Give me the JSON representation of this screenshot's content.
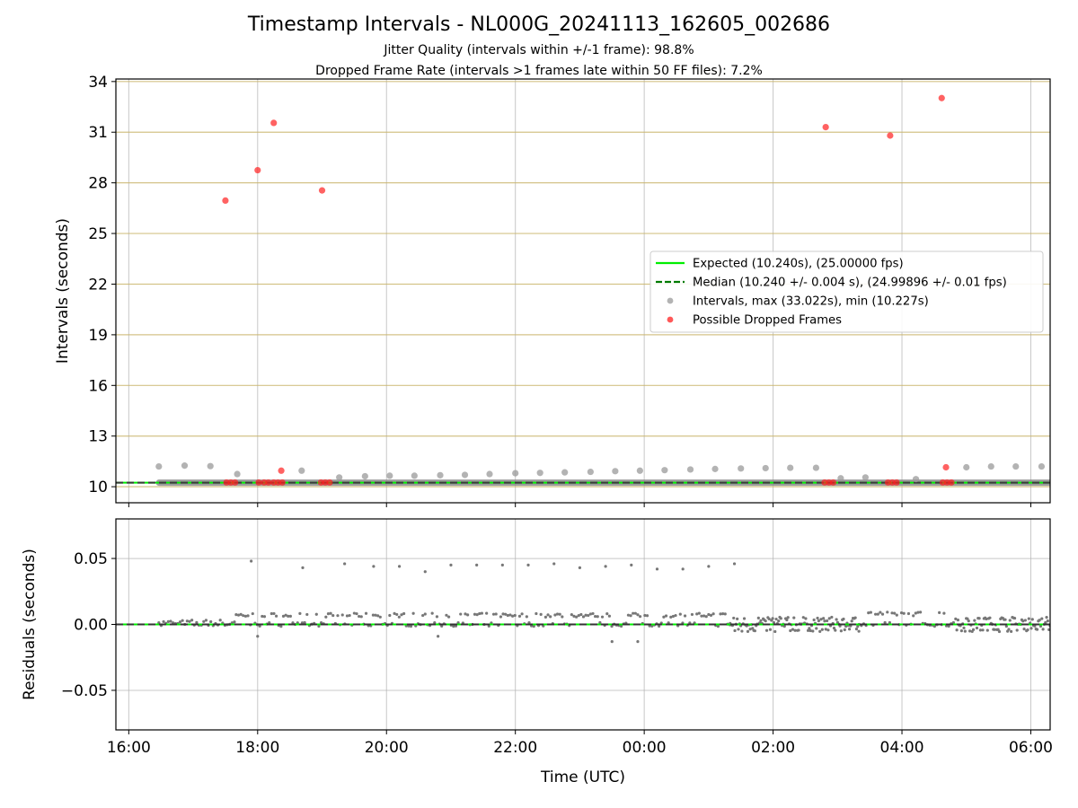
{
  "chart_data": [
    {
      "type": "scatter",
      "title": "Timestamp Intervals - NL000G_20241113_162605_002686",
      "subtitle_lines": [
        "Jitter Quality (intervals within +/-1 frame): 98.8%",
        "Dropped Frame Rate (intervals >1 frames late within 50 FF files): 7.2%"
      ],
      "xlabel": "",
      "ylabel": "Intervals (seconds)",
      "xlim": [
        "2024-11-13 15:48",
        "2024-11-14 06:18"
      ],
      "ylim": [
        9.05,
        34.15
      ],
      "yticks": [
        "10",
        "13",
        "16",
        "19",
        "22",
        "25",
        "28",
        "31",
        "34"
      ],
      "grid": true,
      "legend_position": "center-right",
      "series": [
        {
          "name": "Expected (10.240s), (25.00000 fps)",
          "kind": "line",
          "color": "#00ee00",
          "y": 10.24
        },
        {
          "name": "Median (10.240 +/- 0.004 s), (24.99896 +/- 0.01 fps)",
          "kind": "dashed-line",
          "color": "#007a00",
          "y": 10.24
        },
        {
          "name": "Intervals, max (33.022s), min (10.227s)",
          "kind": "points",
          "color": "#888888",
          "points": [
            [
              "16:28",
              11.2
            ],
            [
              "16:52",
              11.25
            ],
            [
              "17:16",
              11.22
            ],
            [
              "17:41",
              10.75
            ],
            [
              "18:41",
              10.95
            ],
            [
              "19:16",
              10.55
            ],
            [
              "19:40",
              10.62
            ],
            [
              "20:03",
              10.65
            ],
            [
              "20:26",
              10.65
            ],
            [
              "20:50",
              10.68
            ],
            [
              "21:13",
              10.7
            ],
            [
              "21:36",
              10.75
            ],
            [
              "22:00",
              10.8
            ],
            [
              "22:23",
              10.82
            ],
            [
              "22:46",
              10.85
            ],
            [
              "23:10",
              10.88
            ],
            [
              "23:33",
              10.92
            ],
            [
              "23:56",
              10.95
            ],
            [
              "00:19",
              10.98
            ],
            [
              "00:43",
              11.02
            ],
            [
              "01:06",
              11.05
            ],
            [
              "01:30",
              11.08
            ],
            [
              "01:53",
              11.1
            ],
            [
              "02:16",
              11.12
            ],
            [
              "02:40",
              11.12
            ],
            [
              "03:03",
              10.5
            ],
            [
              "03:26",
              10.55
            ],
            [
              "04:13",
              10.45
            ],
            [
              "05:00",
              11.15
            ],
            [
              "05:23",
              11.2
            ],
            [
              "05:46",
              11.2
            ],
            [
              "06:10",
              11.2
            ]
          ],
          "dense_baseline": {
            "from": "16:28",
            "to": "06:18",
            "y": 10.24
          }
        },
        {
          "name": "Possible Dropped Frames",
          "kind": "points",
          "color": "#ff0000",
          "points": [
            [
              "17:30",
              26.95
            ],
            [
              "18:00",
              28.75
            ],
            [
              "18:15",
              31.55
            ],
            [
              "18:22",
              10.95
            ],
            [
              "19:00",
              27.55
            ],
            [
              "02:49",
              31.3
            ],
            [
              "03:49",
              30.8
            ],
            [
              "04:37",
              33.02
            ],
            [
              "04:41",
              11.15
            ],
            [
              "17:31",
              10.25
            ],
            [
              "17:35",
              10.25
            ],
            [
              "17:39",
              10.25
            ],
            [
              "18:01",
              10.25
            ],
            [
              "18:06",
              10.25
            ],
            [
              "18:10",
              10.25
            ],
            [
              "18:15",
              10.25
            ],
            [
              "18:19",
              10.25
            ],
            [
              "18:23",
              10.25
            ],
            [
              "18:59",
              10.25
            ],
            [
              "19:03",
              10.25
            ],
            [
              "19:07",
              10.25
            ],
            [
              "02:48",
              10.25
            ],
            [
              "02:52",
              10.25
            ],
            [
              "02:56",
              10.25
            ],
            [
              "03:47",
              10.25
            ],
            [
              "03:51",
              10.25
            ],
            [
              "03:55",
              10.25
            ],
            [
              "04:38",
              10.25
            ],
            [
              "04:42",
              10.25
            ],
            [
              "04:46",
              10.25
            ]
          ]
        }
      ]
    },
    {
      "type": "scatter",
      "title": "",
      "xlabel": "Time (UTC)",
      "ylabel": "Residuals (seconds)",
      "xlim": [
        "2024-11-13 15:48",
        "2024-11-14 06:18"
      ],
      "xticks": [
        "16:00",
        "18:00",
        "20:00",
        "22:00",
        "00:00",
        "02:00",
        "04:00",
        "06:00"
      ],
      "ylim": [
        -0.08,
        0.08
      ],
      "yticks": [
        "−0.05",
        "0.00",
        "0.05"
      ],
      "grid": true,
      "series": [
        {
          "kind": "line",
          "color": "#00ee00",
          "y": 0.0
        },
        {
          "kind": "dashed-line",
          "color": "#333333",
          "y": 0.0
        },
        {
          "kind": "points",
          "color": "#777777",
          "outliers": [
            [
              "17:54",
              0.048
            ],
            [
              "18:42",
              0.043
            ],
            [
              "19:21",
              0.046
            ],
            [
              "19:48",
              0.044
            ],
            [
              "20:12",
              0.044
            ],
            [
              "20:36",
              0.04
            ],
            [
              "21:00",
              0.045
            ],
            [
              "21:24",
              0.045
            ],
            [
              "21:48",
              0.045
            ],
            [
              "22:12",
              0.045
            ],
            [
              "22:36",
              0.046
            ],
            [
              "23:00",
              0.043
            ],
            [
              "23:24",
              0.044
            ],
            [
              "23:48",
              0.045
            ],
            [
              "00:12",
              0.042
            ],
            [
              "00:36",
              0.042
            ],
            [
              "01:00",
              0.044
            ],
            [
              "01:24",
              0.046
            ],
            [
              "23:30",
              -0.013
            ],
            [
              "23:54",
              -0.013
            ],
            [
              "20:48",
              -0.009
            ],
            [
              "18:00",
              -0.009
            ]
          ],
          "band": [
            {
              "from": "16:28",
              "to": "17:40",
              "y_levels": [
                0.0,
                0.002
              ]
            },
            {
              "from": "17:40",
              "to": "01:20",
              "y_levels": [
                0.0,
                0.007
              ]
            },
            {
              "from": "01:20",
              "to": "03:20",
              "y_levels": [
                -0.004,
                0.0,
                0.004
              ]
            },
            {
              "from": "03:20",
              "to": "04:50",
              "y_levels": [
                0.0,
                0.008
              ]
            },
            {
              "from": "04:50",
              "to": "06:18",
              "y_levels": [
                -0.004,
                0.0,
                0.004
              ]
            }
          ]
        }
      ]
    }
  ]
}
